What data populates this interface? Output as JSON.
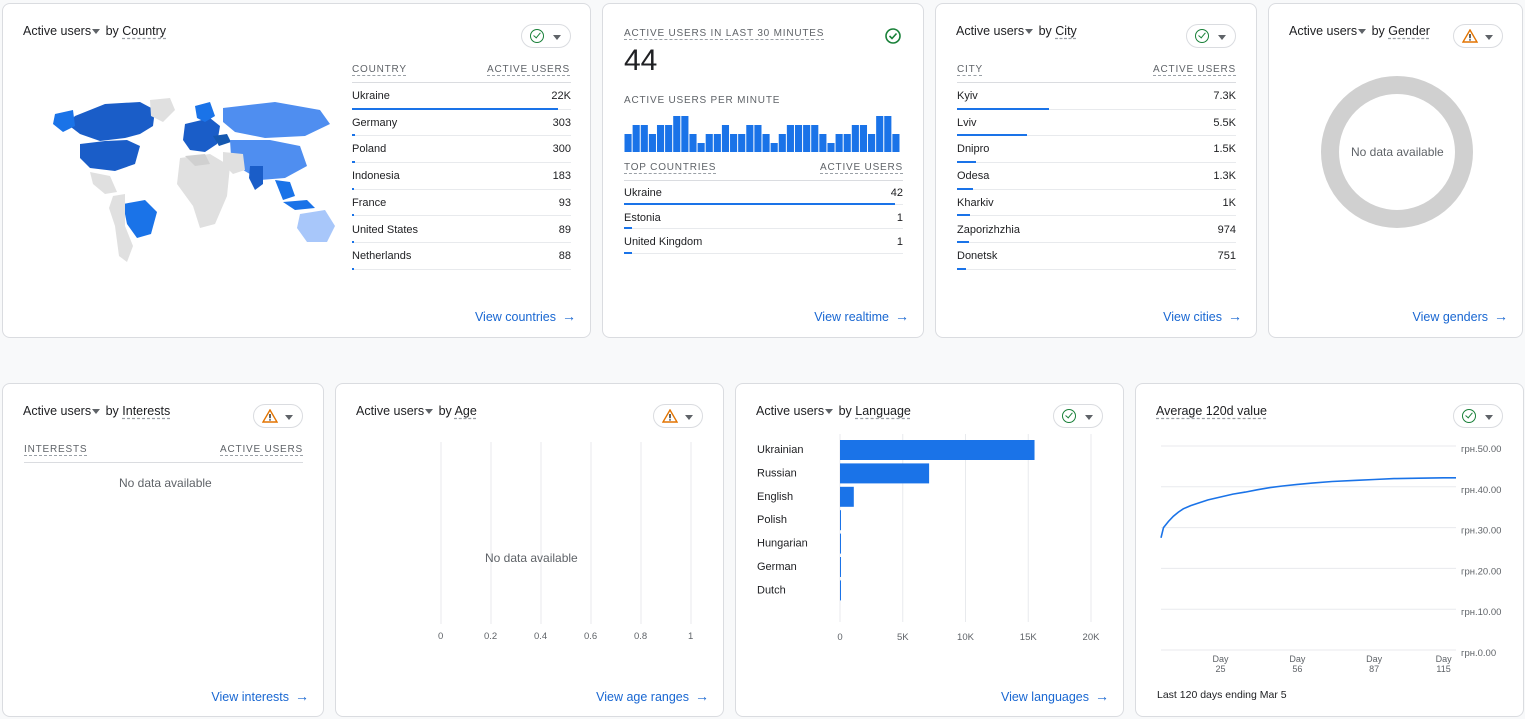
{
  "common": {
    "active_users": "Active users",
    "by": "by",
    "no_data": "No data available",
    "arrow": "→"
  },
  "colors": {
    "accent": "#1a73e8",
    "link": "#1967d2",
    "ok": "#188038",
    "warn": "#e37400",
    "nodata_ring": "#d0d0d0"
  },
  "country_card": {
    "dimension": "Country",
    "col1": "COUNTRY",
    "col2": "ACTIVE USERS",
    "rows": [
      {
        "name": "Ukraine",
        "value": "22K",
        "share": 0.94
      },
      {
        "name": "Germany",
        "value": "303",
        "share": 0.013
      },
      {
        "name": "Poland",
        "value": "300",
        "share": 0.013
      },
      {
        "name": "Indonesia",
        "value": "183",
        "share": 0.008
      },
      {
        "name": "France",
        "value": "93",
        "share": 0.005
      },
      {
        "name": "United States",
        "value": "89",
        "share": 0.005
      },
      {
        "name": "Netherlands",
        "value": "88",
        "share": 0.005
      }
    ],
    "link": "View countries",
    "status": "ok-icon"
  },
  "realtime_card": {
    "title": "ACTIVE USERS IN LAST 30 MINUTES",
    "count": "44",
    "per_minute_label": "ACTIVE USERS PER MINUTE",
    "per_minute": [
      2,
      3,
      3,
      2,
      3,
      3,
      4,
      4,
      2,
      1,
      2,
      2,
      3,
      2,
      2,
      3,
      3,
      2,
      1,
      2,
      3,
      3,
      3,
      3,
      2,
      1,
      2,
      2,
      3,
      3,
      2,
      4,
      4,
      2
    ],
    "col1": "TOP COUNTRIES",
    "col2": "ACTIVE USERS",
    "rows": [
      {
        "name": "Ukraine",
        "value": "42",
        "share": 0.97
      },
      {
        "name": "Estonia",
        "value": "1",
        "share": 0.03
      },
      {
        "name": "United Kingdom",
        "value": "1",
        "share": 0.03
      }
    ],
    "link": "View realtime",
    "status": "ok-icon"
  },
  "city_card": {
    "dimension": "City",
    "col1": "CITY",
    "col2": "ACTIVE USERS",
    "rows": [
      {
        "name": "Kyiv",
        "value": "7.3K",
        "share": 0.33
      },
      {
        "name": "Lviv",
        "value": "5.5K",
        "share": 0.25
      },
      {
        "name": "Dnipro",
        "value": "1.5K",
        "share": 0.068
      },
      {
        "name": "Odesa",
        "value": "1.3K",
        "share": 0.059
      },
      {
        "name": "Kharkiv",
        "value": "1K",
        "share": 0.046
      },
      {
        "name": "Zaporizhzhia",
        "value": "974",
        "share": 0.044
      },
      {
        "name": "Donetsk",
        "value": "751",
        "share": 0.034
      }
    ],
    "link": "View cities",
    "status": "ok-icon"
  },
  "gender_card": {
    "dimension": "Gender",
    "link": "View genders",
    "status": "warning-icon"
  },
  "interests_card": {
    "dimension": "Interests",
    "col1": "INTERESTS",
    "col2": "ACTIVE USERS",
    "link": "View interests",
    "status": "warning-icon"
  },
  "age_card": {
    "dimension": "Age",
    "x_ticks": [
      "0",
      "0.2",
      "0.4",
      "0.6",
      "0.8",
      "1"
    ],
    "link": "View age ranges",
    "status": "warning-icon"
  },
  "language_card": {
    "dimension": "Language",
    "link": "View languages",
    "status": "ok-icon"
  },
  "avg_card": {
    "title": "Average 120d value",
    "footer": "Last 120 days ending Mar 5",
    "status": "ok-icon"
  },
  "chart_data": [
    {
      "type": "bar",
      "orientation": "horizontal",
      "categories": [
        "Ukrainian",
        "Russian",
        "English",
        "Polish",
        "Hungarian",
        "German",
        "Dutch"
      ],
      "values": [
        15500,
        7100,
        1100,
        40,
        30,
        30,
        20
      ],
      "x_ticks": [
        "0",
        "5K",
        "10K",
        "15K",
        "20K"
      ],
      "xlim": [
        0,
        20000
      ]
    },
    {
      "type": "line",
      "x_ticks": [
        {
          "day": "Day",
          "num": "25"
        },
        {
          "day": "Day",
          "num": "56"
        },
        {
          "day": "Day",
          "num": "87"
        },
        {
          "day": "Day",
          "num": "115"
        }
      ],
      "y_ticks": [
        "грн.50.00",
        "грн.40.00",
        "грн.30.00",
        "грн.20.00",
        "грн.10.00",
        "грн.0.00"
      ],
      "ylim": [
        0,
        50
      ],
      "xlim": [
        1,
        120
      ],
      "x": [
        1,
        2,
        4,
        6,
        8,
        10,
        13,
        16,
        20,
        25,
        30,
        35,
        40,
        45,
        50,
        56,
        62,
        70,
        80,
        87,
        95,
        105,
        115,
        120
      ],
      "y": [
        27.5,
        30,
        31.5,
        32.8,
        33.8,
        34.6,
        35.4,
        36,
        36.8,
        37.5,
        38.2,
        38.7,
        39.3,
        39.8,
        40.2,
        40.6,
        40.9,
        41.3,
        41.6,
        41.8,
        42,
        42.1,
        42.2,
        42.2
      ]
    }
  ]
}
